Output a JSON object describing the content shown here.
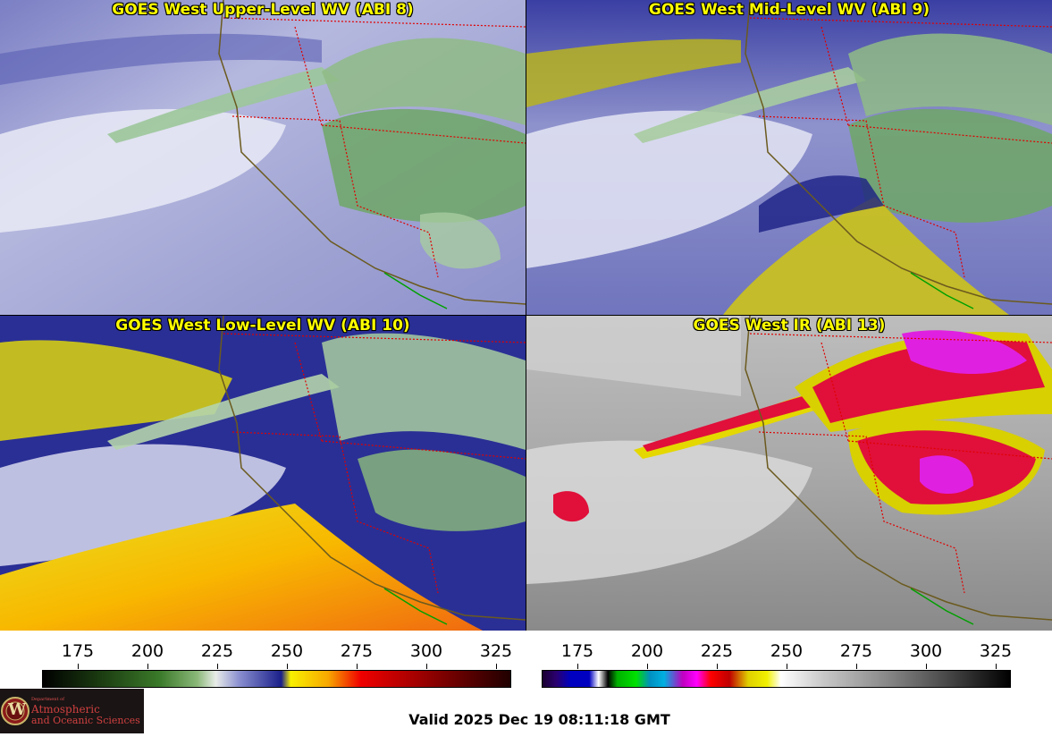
{
  "panels": {
    "upper": {
      "title": "GOES West Upper-Level WV (ABI 8)"
    },
    "mid": {
      "title": "GOES West Mid-Level WV (ABI 9)"
    },
    "low": {
      "title": "GOES West Low-Level WV (ABI 10)"
    },
    "ir": {
      "title": "GOES West IR (ABI 13)"
    }
  },
  "colorbars": {
    "wv": {
      "ticks": [
        "175",
        "200",
        "225",
        "250",
        "275",
        "300",
        "325"
      ]
    },
    "ir": {
      "ticks": [
        "175",
        "200",
        "225",
        "250",
        "275",
        "300",
        "325"
      ]
    }
  },
  "logo": {
    "line1": "Department of",
    "line2": "Atmospheric",
    "line3": "and Oceanic Sciences",
    "seal": "W"
  },
  "footer": {
    "valid": "Valid 2025 Dec 19 08:11:18 GMT"
  },
  "colors": {
    "border_state": "#e00000",
    "coast": "#6b5a1e",
    "mexico": "#00a000",
    "title": "#ffff00"
  }
}
